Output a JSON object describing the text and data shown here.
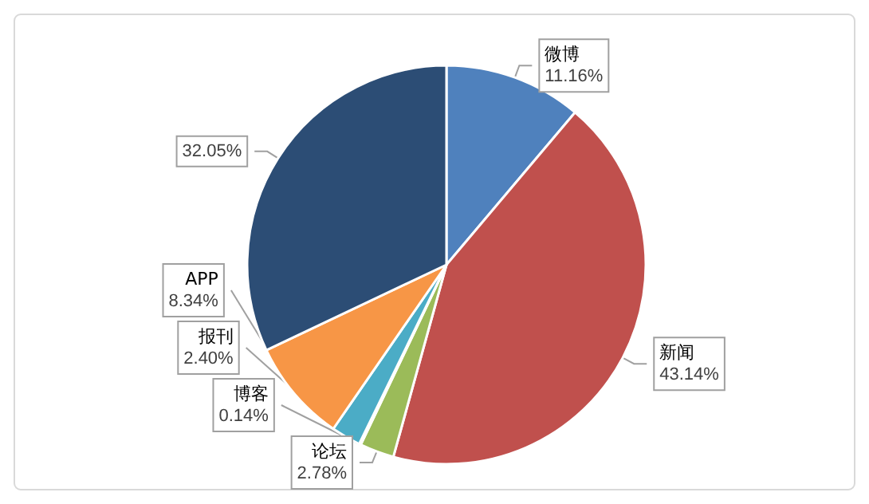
{
  "chart_data": {
    "type": "pie",
    "categories": [
      "微博",
      "新闻",
      "论坛",
      "博客",
      "报刊",
      "APP",
      null
    ],
    "values": [
      11.16,
      43.14,
      2.78,
      0.14,
      2.4,
      8.34,
      32.05
    ],
    "colors": [
      "#4f81bd",
      "#c0504d",
      "#9bbb59",
      "#8064a2",
      "#4bacc6",
      "#f79646",
      "#2c4d75"
    ],
    "value_labels": [
      "11.16%",
      "43.14%",
      "2.78%",
      "0.14%",
      "2.40%",
      "8.34%",
      "32.05%"
    ],
    "legend": false
  }
}
